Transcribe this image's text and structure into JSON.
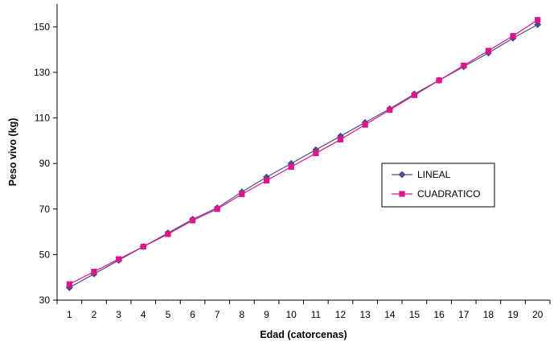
{
  "chart_data": {
    "type": "line",
    "title": "",
    "xlabel": "Edad (catorcenas)",
    "ylabel": "Peso vivo (kg)",
    "x": [
      1,
      2,
      3,
      4,
      5,
      6,
      7,
      8,
      9,
      10,
      11,
      12,
      13,
      14,
      15,
      16,
      17,
      18,
      19,
      20
    ],
    "xlim": [
      0.5,
      20.5
    ],
    "ylim": [
      30,
      160
    ],
    "yticks": [
      30,
      50,
      70,
      90,
      110,
      130,
      150
    ],
    "grid": false,
    "legend_position": "right-center",
    "series": [
      {
        "name": "LINEAL",
        "color": "#4a4f86",
        "marker": "diamond",
        "values": [
          35.5,
          41.5,
          47.5,
          53.5,
          59.5,
          65.5,
          70.5,
          77.5,
          84.0,
          90.0,
          96.0,
          102.0,
          108.0,
          114.0,
          120.5,
          126.5,
          132.5,
          138.5,
          145.0,
          151.0
        ]
      },
      {
        "name": "CUADRATICO",
        "color": "#e0148c",
        "marker": "square",
        "values": [
          37.0,
          42.5,
          48.0,
          53.5,
          59.0,
          65.0,
          70.0,
          76.5,
          82.5,
          88.5,
          94.5,
          100.5,
          107.0,
          113.5,
          120.0,
          126.5,
          133.0,
          139.5,
          146.0,
          153.0
        ]
      }
    ]
  }
}
